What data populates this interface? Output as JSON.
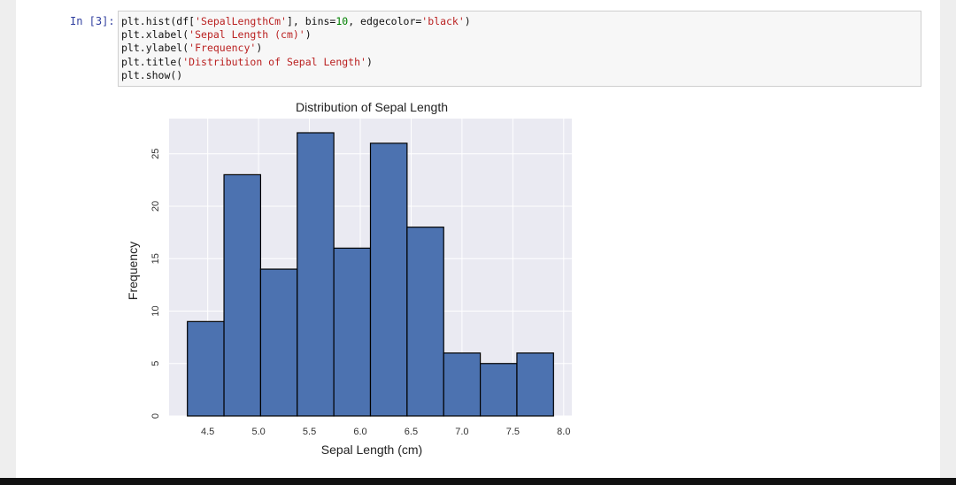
{
  "cell": {
    "prompt": "In [3]:",
    "lines": [
      [
        {
          "t": "plt.hist(df[",
          "c": "plain"
        },
        {
          "t": "'SepalLengthCm'",
          "c": "str"
        },
        {
          "t": "], bins=",
          "c": "plain"
        },
        {
          "t": "10",
          "c": "num"
        },
        {
          "t": ", edgecolor=",
          "c": "plain"
        },
        {
          "t": "'black'",
          "c": "str"
        },
        {
          "t": ")",
          "c": "plain"
        }
      ],
      [
        {
          "t": "plt.xlabel(",
          "c": "plain"
        },
        {
          "t": "'Sepal Length (cm)'",
          "c": "str"
        },
        {
          "t": ")",
          "c": "plain"
        }
      ],
      [
        {
          "t": "plt.ylabel(",
          "c": "plain"
        },
        {
          "t": "'Frequency'",
          "c": "str"
        },
        {
          "t": ")",
          "c": "plain"
        }
      ],
      [
        {
          "t": "plt.title(",
          "c": "plain"
        },
        {
          "t": "'Distribution of Sepal Length'",
          "c": "str"
        },
        {
          "t": ")",
          "c": "plain"
        }
      ],
      [
        {
          "t": "plt.show()",
          "c": "plain"
        }
      ]
    ]
  },
  "colors": {
    "bar_fill": "#4c72b0",
    "bar_edge": "#000000",
    "plot_bg": "#eaeaf2",
    "grid": "#ffffff",
    "string": "#ba2121",
    "number": "#008000"
  },
  "chart_data": {
    "type": "bar",
    "title": "Distribution of Sepal Length",
    "xlabel": "Sepal Length (cm)",
    "ylabel": "Frequency",
    "bin_edges": [
      4.3,
      4.66,
      5.02,
      5.38,
      5.74,
      6.1,
      6.46,
      6.82,
      7.18,
      7.54,
      7.9
    ],
    "values": [
      9,
      23,
      14,
      27,
      16,
      26,
      18,
      6,
      5,
      6
    ],
    "xticks": [
      "4.5",
      "5.0",
      "5.5",
      "6.0",
      "6.5",
      "7.0",
      "7.5",
      "8.0"
    ],
    "yticks": [
      "0",
      "5",
      "10",
      "15",
      "20",
      "25"
    ],
    "xlim": [
      4.12,
      8.08
    ],
    "ylim": [
      0,
      28.35
    ],
    "grid": true,
    "legend": "none"
  }
}
